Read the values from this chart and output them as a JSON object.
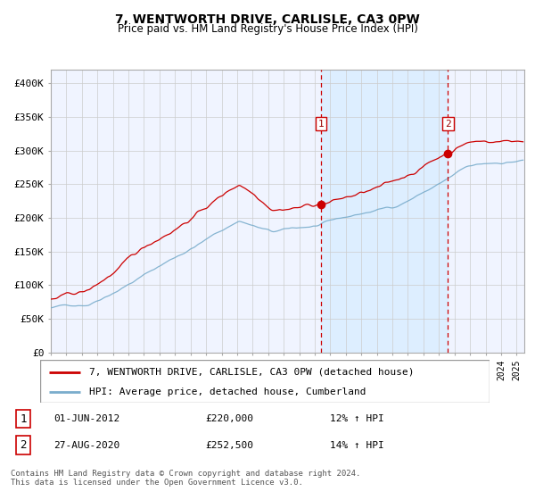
{
  "title": "7, WENTWORTH DRIVE, CARLISLE, CA3 0PW",
  "subtitle": "Price paid vs. HM Land Registry's House Price Index (HPI)",
  "ylabel_ticks": [
    "£0",
    "£50K",
    "£100K",
    "£150K",
    "£200K",
    "£250K",
    "£300K",
    "£350K",
    "£400K"
  ],
  "ytick_vals": [
    0,
    50000,
    100000,
    150000,
    200000,
    250000,
    300000,
    350000,
    400000
  ],
  "ylim": [
    0,
    420000
  ],
  "event1_date": "2012-06-01",
  "event1_price": 220000,
  "event1_label": "1",
  "event1_text": "01-JUN-2012",
  "event1_price_text": "£220,000",
  "event1_pct_text": "12% ↑ HPI",
  "event2_date": "2020-08-01",
  "event2_price": 252500,
  "event2_label": "2",
  "event2_text": "27-AUG-2020",
  "event2_price_text": "£252,500",
  "event2_pct_text": "14% ↑ HPI",
  "red_line_color": "#cc0000",
  "blue_line_color": "#7aadcc",
  "shade_color": "#ddeeff",
  "grid_color": "#cccccc",
  "background_color": "#ffffff",
  "plot_bg_color": "#f0f4ff",
  "legend_line1": "7, WENTWORTH DRIVE, CARLISLE, CA3 0PW (detached house)",
  "legend_line2": "HPI: Average price, detached house, Cumberland",
  "footer1": "Contains HM Land Registry data © Crown copyright and database right 2024.",
  "footer2": "This data is licensed under the Open Government Licence v3.0.",
  "title_fontsize": 10,
  "subtitle_fontsize": 8.5,
  "tick_fontsize": 8,
  "legend_fontsize": 8,
  "ann_fontsize": 8,
  "footer_fontsize": 6.5
}
